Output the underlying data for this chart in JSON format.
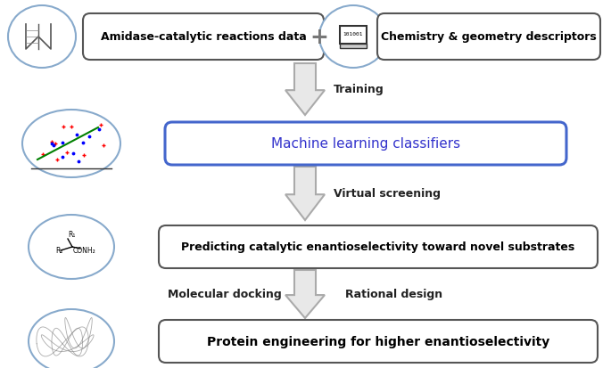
{
  "bg_color": "#ffffff",
  "box1_text": "Amidase-catalytic reactions data",
  "box2_text": "Chemistry & geometry descriptors",
  "box3_text": "Machine learning classifiers",
  "box4_text": "Predicting catalytic enantioselectivity toward novel substrates",
  "box5_text": "Protein engineering for higher enantioselectivity",
  "label_training": "Training",
  "label_virtual": "Virtual screening",
  "label_docking": "Molecular docking",
  "label_rational": "Rational design",
  "arrow_fill": "#e8e8e8",
  "arrow_edge": "#aaaaaa",
  "box_edge_normal": "#555555",
  "box_edge_ml": "#4466cc",
  "box_text_ml": "#3333cc",
  "circle_edge": "#88aacc",
  "circle_face": "#ffffff",
  "plus_color": "#777777",
  "label_color": "#222222"
}
